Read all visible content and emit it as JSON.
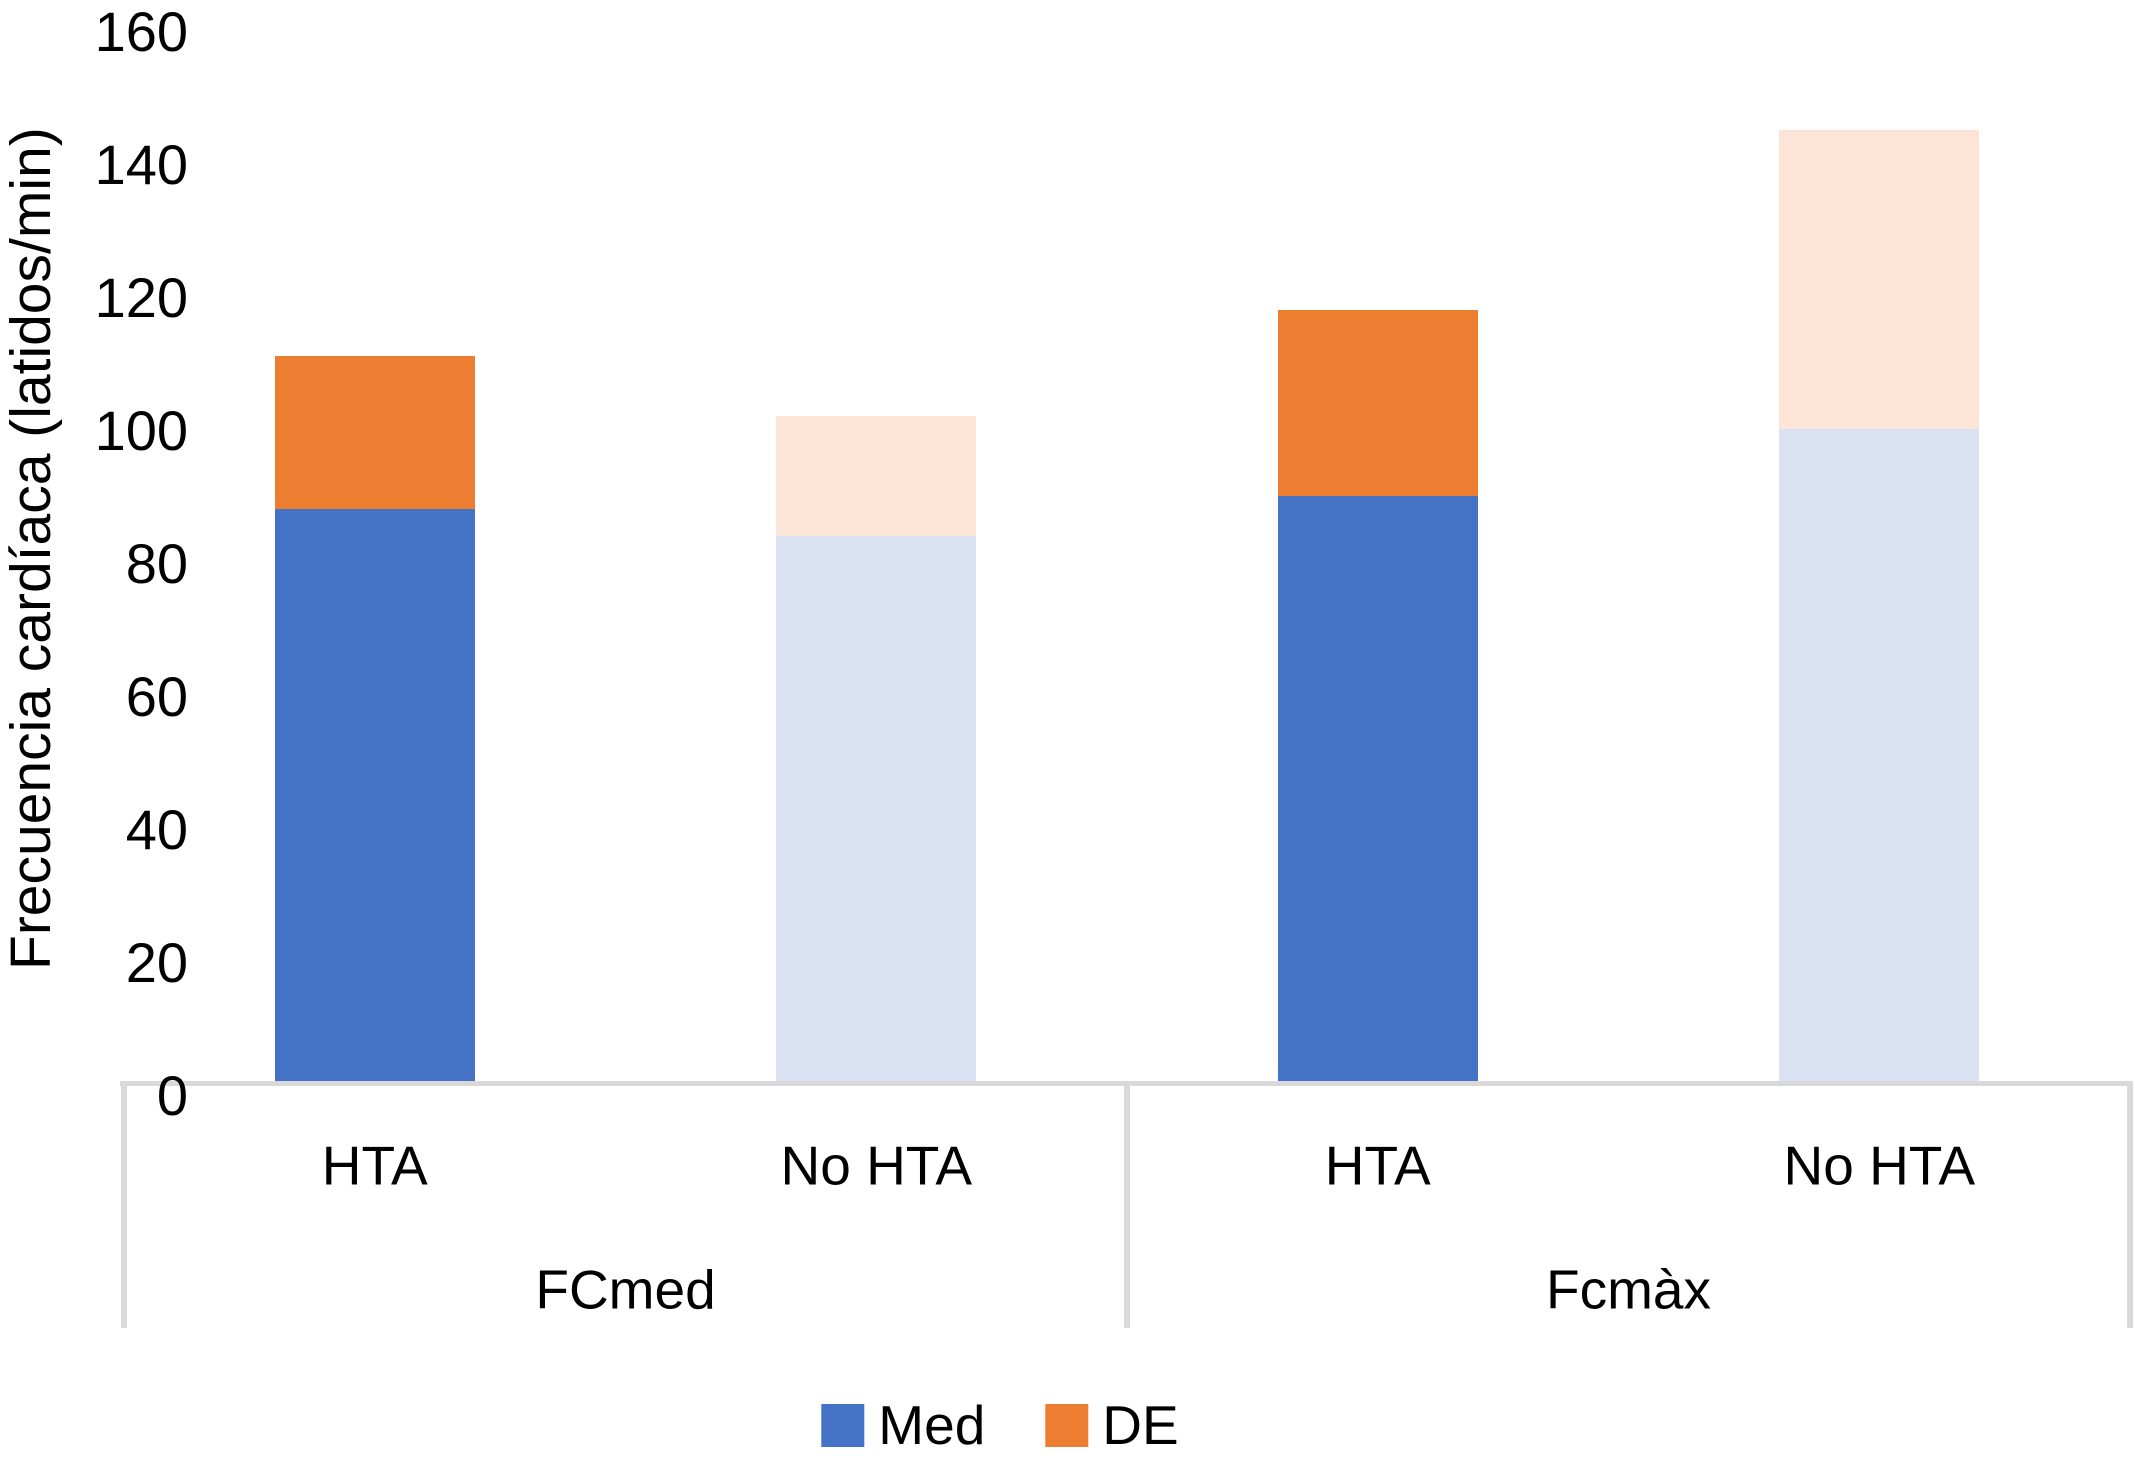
{
  "chart_data": {
    "type": "bar",
    "stacked": true,
    "title": "",
    "xlabel": "",
    "ylabel": "Frecuencia cardíaca (latidos/min)",
    "ylim": [
      0,
      160
    ],
    "yticks": [
      0,
      20,
      40,
      60,
      80,
      100,
      120,
      140,
      160
    ],
    "grid": false,
    "legend_position": "bottom",
    "groups": [
      "FCmed",
      "Fcmàx"
    ],
    "categories": [
      "HTA",
      "No HTA",
      "HTA",
      "No HTA"
    ],
    "series": [
      {
        "name": "Med",
        "values": [
          86,
          82,
          88,
          98
        ]
      },
      {
        "name": "DE",
        "values": [
          23,
          18,
          28,
          45
        ]
      }
    ],
    "bars": [
      {
        "group": "FCmed",
        "category": "HTA",
        "med": 86,
        "de": 23,
        "med_color": "#4472C4",
        "de_color": "#ED7D31"
      },
      {
        "group": "FCmed",
        "category": "No HTA",
        "med": 82,
        "de": 18,
        "med_color": "#D9E1F2",
        "de_color": "#FCE4D6"
      },
      {
        "group": "Fcmàx",
        "category": "HTA",
        "med": 88,
        "de": 28,
        "med_color": "#4472C4",
        "de_color": "#ED7D31"
      },
      {
        "group": "Fcmàx",
        "category": "No HTA",
        "med": 98,
        "de": 45,
        "med_color": "#D9E1F2",
        "de_color": "#FCE4D6"
      }
    ]
  },
  "legend": {
    "items": [
      {
        "label": "Med",
        "color": "#4472C4"
      },
      {
        "label": "DE",
        "color": "#ED7D31"
      }
    ]
  },
  "colors": {
    "bar_blue": "#4472C4",
    "bar_orange": "#ED7D31",
    "bar_blue_light": "#D9E1F2",
    "bar_orange_light": "#FCE4D6",
    "axis_gray": "#D9D9D9",
    "text": "#000000"
  }
}
